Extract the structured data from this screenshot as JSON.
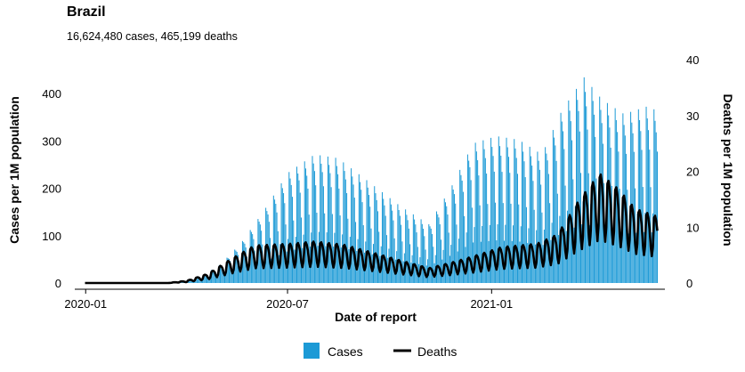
{
  "title": "Brazil",
  "subtitle": "16,624,480 cases, 465,199 deaths",
  "colors": {
    "cases": "#1c9ad6",
    "deaths": "#000000"
  },
  "chart_data": {
    "type": "bar",
    "title": "Brazil",
    "subtitle": "16,624,480 cases, 465,199 deaths",
    "xlabel": "Date of report",
    "ylabel_left": "Cases per 1M population",
    "ylabel_right": "Deaths per 1M population",
    "x_range": [
      "2019-12-31",
      "2021-05-30"
    ],
    "x_ticks": [
      "2020-01",
      "2020-07",
      "2021-01"
    ],
    "ylim_left": [
      0,
      470
    ],
    "yticks_left": [
      0,
      100,
      200,
      300,
      400
    ],
    "ylim_right": [
      0,
      40
    ],
    "yticks_right": [
      0,
      10,
      20,
      30,
      40
    ],
    "legend": {
      "position": "bottom",
      "entries": [
        "Cases",
        "Deaths"
      ]
    },
    "grid": false,
    "series": [
      {
        "name": "Cases",
        "type": "bar",
        "axis": "left",
        "weekly_pattern": "daily bars oscillate with a strong 7-day reporting cycle",
        "anchors": [
          {
            "date": "2019-12-31",
            "value": 0
          },
          {
            "date": "2020-03-01",
            "value": 0
          },
          {
            "date": "2020-03-20",
            "value": 1
          },
          {
            "date": "2020-04-10",
            "value": 6
          },
          {
            "date": "2020-05-01",
            "value": 25
          },
          {
            "date": "2020-05-20",
            "value": 55
          },
          {
            "date": "2020-06-10",
            "value": 100
          },
          {
            "date": "2020-07-01",
            "value": 150
          },
          {
            "date": "2020-07-25",
            "value": 175
          },
          {
            "date": "2020-08-15",
            "value": 170
          },
          {
            "date": "2020-09-10",
            "value": 140
          },
          {
            "date": "2020-10-10",
            "value": 105
          },
          {
            "date": "2020-11-05",
            "value": 80
          },
          {
            "date": "2020-11-25",
            "value": 130
          },
          {
            "date": "2020-12-15",
            "value": 190
          },
          {
            "date": "2021-01-05",
            "value": 200
          },
          {
            "date": "2021-01-25",
            "value": 195
          },
          {
            "date": "2021-02-15",
            "value": 175
          },
          {
            "date": "2021-03-05",
            "value": 235
          },
          {
            "date": "2021-03-25",
            "value": 280
          },
          {
            "date": "2021-04-10",
            "value": 250
          },
          {
            "date": "2021-04-30",
            "value": 230
          },
          {
            "date": "2021-05-20",
            "value": 240
          },
          {
            "date": "2021-05-30",
            "value": 235
          }
        ]
      },
      {
        "name": "Deaths",
        "type": "line",
        "axis": "right",
        "weekly_pattern": "line oscillates with a 7-day reporting cycle",
        "anchors": [
          {
            "date": "2019-12-31",
            "value": 0
          },
          {
            "date": "2020-03-15",
            "value": 0
          },
          {
            "date": "2020-04-01",
            "value": 0.3
          },
          {
            "date": "2020-04-20",
            "value": 1.2
          },
          {
            "date": "2020-05-10",
            "value": 3.0
          },
          {
            "date": "2020-06-01",
            "value": 4.8
          },
          {
            "date": "2020-07-01",
            "value": 5.0
          },
          {
            "date": "2020-07-25",
            "value": 5.3
          },
          {
            "date": "2020-08-20",
            "value": 4.9
          },
          {
            "date": "2020-09-15",
            "value": 3.9
          },
          {
            "date": "2020-10-15",
            "value": 2.7
          },
          {
            "date": "2020-11-05",
            "value": 1.9
          },
          {
            "date": "2020-11-25",
            "value": 2.6
          },
          {
            "date": "2020-12-15",
            "value": 3.4
          },
          {
            "date": "2021-01-10",
            "value": 4.6
          },
          {
            "date": "2021-02-10",
            "value": 5.0
          },
          {
            "date": "2021-03-01",
            "value": 6.2
          },
          {
            "date": "2021-03-20",
            "value": 10.5
          },
          {
            "date": "2021-04-08",
            "value": 14.0
          },
          {
            "date": "2021-04-25",
            "value": 12.0
          },
          {
            "date": "2021-05-10",
            "value": 9.5
          },
          {
            "date": "2021-05-30",
            "value": 8.5
          }
        ]
      }
    ]
  }
}
